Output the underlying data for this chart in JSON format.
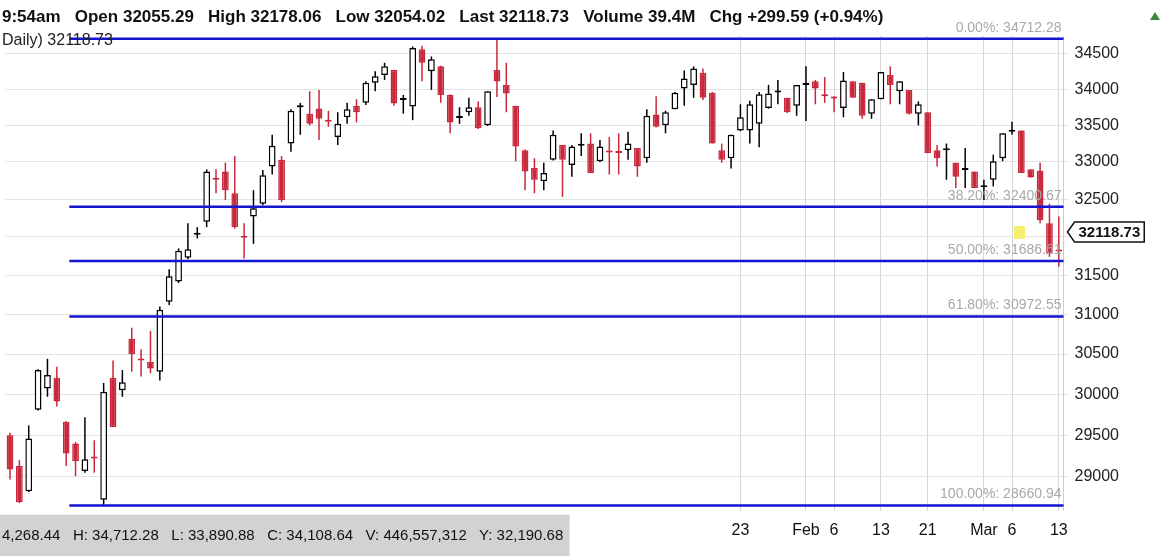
{
  "chart_data": {
    "type": "candlestick",
    "categories": [
      null,
      null,
      null,
      null,
      null,
      null,
      null,
      null,
      null,
      null,
      null,
      null,
      null,
      null,
      null,
      null,
      null,
      null,
      null,
      null,
      null,
      null,
      null,
      null,
      null,
      null,
      null,
      null,
      null,
      null,
      null,
      null,
      null,
      null,
      null,
      null,
      null,
      null,
      null,
      null,
      null,
      null,
      null,
      null,
      null,
      null,
      null,
      null,
      null,
      null,
      null,
      null,
      null,
      null,
      null,
      null,
      null,
      null,
      null,
      null,
      null,
      null,
      null,
      null,
      null,
      null,
      null,
      null,
      null,
      null,
      null,
      null,
      null,
      null,
      null,
      null,
      null,
      null,
      "23",
      null,
      null,
      null,
      null,
      null,
      null,
      "Feb",
      null,
      null,
      "6",
      null,
      null,
      null,
      null,
      "13",
      null,
      null,
      null,
      null,
      "21",
      null,
      null,
      null,
      null,
      null,
      "Mar",
      null,
      null,
      "6",
      null,
      null,
      null,
      null,
      "13"
    ],
    "ohlc": [
      [
        29500,
        29530,
        28970,
        29090
      ],
      [
        29130,
        29200,
        28690,
        28700
      ],
      [
        28830,
        29620,
        28820,
        29460
      ],
      [
        29810,
        30310,
        29800,
        30300
      ],
      [
        30070,
        30440,
        29970,
        30240
      ],
      [
        30200,
        30340,
        29850,
        29910
      ],
      [
        29660,
        29670,
        29130,
        29280
      ],
      [
        29400,
        29420,
        29010,
        29190
      ],
      [
        29070,
        29720,
        29050,
        29210
      ],
      [
        29230,
        29440,
        29050,
        29220
      ],
      [
        28730,
        30140,
        28660.94,
        30030
      ],
      [
        30200,
        30420,
        29600,
        29600
      ],
      [
        30050,
        30300,
        29970,
        30150
      ],
      [
        30690,
        30830,
        30280,
        30500
      ],
      [
        30430,
        30560,
        30220,
        30420
      ],
      [
        30400,
        30790,
        30260,
        30320
      ],
      [
        30280,
        31100,
        30170,
        31060
      ],
      [
        31160,
        31580,
        31120,
        31490
      ],
      [
        31420,
        31850,
        31400,
        31820
      ],
      [
        31730,
        32180,
        31710,
        31840
      ],
      [
        32030,
        32130,
        31980,
        32040
      ],
      [
        32200,
        32900,
        32130,
        32870
      ],
      [
        32770,
        32900,
        32580,
        32760
      ],
      [
        32870,
        32990,
        32490,
        32620
      ],
      [
        32580,
        33080,
        32110,
        32130
      ],
      [
        32000,
        32180,
        31720,
        31990
      ],
      [
        32270,
        32620,
        31910,
        32380
      ],
      [
        32440,
        32890,
        32420,
        32820
      ],
      [
        32940,
        33370,
        32830,
        33220
      ],
      [
        33030,
        33080,
        32460,
        32490
      ],
      [
        33250,
        33720,
        33140,
        33700
      ],
      [
        33750,
        33810,
        33370,
        33770
      ],
      [
        33660,
        33970,
        33500,
        33520
      ],
      [
        33730,
        33990,
        33300,
        33590
      ],
      [
        33560,
        33700,
        33480,
        33550
      ],
      [
        33340,
        33680,
        33230,
        33520
      ],
      [
        33610,
        33810,
        33520,
        33720
      ],
      [
        33770,
        33860,
        33540,
        33680
      ],
      [
        33810,
        34110,
        33780,
        34090
      ],
      [
        34090,
        34250,
        33970,
        34180
      ],
      [
        34200,
        34370,
        34130,
        34320
      ],
      [
        34270,
        34270,
        33770,
        33800
      ],
      [
        33850,
        33920,
        33660,
        33860
      ],
      [
        33760,
        34600,
        33570,
        34580
      ],
      [
        34560,
        34610,
        34110,
        34370
      ],
      [
        34250,
        34460,
        33990,
        34420
      ],
      [
        34320,
        34330,
        33810,
        33920
      ],
      [
        33920,
        33930,
        33390,
        33540
      ],
      [
        33600,
        33750,
        33520,
        33610
      ],
      [
        33680,
        33880,
        33630,
        33750
      ],
      [
        33750,
        33830,
        33450,
        33460
      ],
      [
        33500,
        33970,
        33490,
        33970
      ],
      [
        34268.44,
        34712.28,
        33890.88,
        34108.64
      ],
      [
        34060,
        34370,
        33680,
        33940
      ],
      [
        33770,
        33770,
        33010,
        33210
      ],
      [
        33160,
        33170,
        32620,
        32870
      ],
      [
        32920,
        33050,
        32580,
        32760
      ],
      [
        32740,
        32990,
        32620,
        32850
      ],
      [
        33030,
        33430,
        33020,
        33370
      ],
      [
        33230,
        33230,
        32530,
        33030
      ],
      [
        32960,
        33230,
        32800,
        33210
      ],
      [
        33220,
        33390,
        33080,
        33230
      ],
      [
        33250,
        33390,
        32850,
        32850
      ],
      [
        33010,
        33300,
        33000,
        33210
      ],
      [
        33140,
        33340,
        32830,
        33130
      ],
      [
        33130,
        33390,
        32830,
        33120
      ],
      [
        33160,
        33410,
        33030,
        33250
      ],
      [
        33190,
        33190,
        32800,
        32940
      ],
      [
        33050,
        33720,
        32990,
        33630
      ],
      [
        33650,
        33900,
        33470,
        33480
      ],
      [
        33500,
        33700,
        33390,
        33680
      ],
      [
        33720,
        33960,
        33720,
        33950
      ],
      [
        34010,
        34260,
        33770,
        34150
      ],
      [
        34060,
        34320,
        33880,
        34290
      ],
      [
        34230,
        34290,
        33850,
        33880
      ],
      [
        33950,
        33960,
        33250,
        33250
      ],
      [
        33160,
        33250,
        32990,
        33030
      ],
      [
        33050,
        33370,
        32910,
        33370
      ],
      [
        33430,
        33790,
        33420,
        33610
      ],
      [
        33430,
        33840,
        33250,
        33790
      ],
      [
        33520,
        33960,
        33200,
        33930
      ],
      [
        33740,
        34060,
        33730,
        33940
      ],
      [
        33955,
        34130,
        33790,
        33970
      ],
      [
        33880,
        33880,
        33670,
        33680
      ],
      [
        33770,
        34060,
        33630,
        34060
      ],
      [
        34060,
        34320,
        33560,
        34070
      ],
      [
        34110,
        34130,
        33790,
        34010
      ],
      [
        33910,
        34170,
        33810,
        33900
      ],
      [
        33880,
        33900,
        33680,
        33870
      ],
      [
        33740,
        34240,
        33610,
        34120
      ],
      [
        34110,
        34110,
        33880,
        33880
      ],
      [
        34090,
        34090,
        33590,
        33630
      ],
      [
        33660,
        33860,
        33590,
        33860
      ],
      [
        33860,
        34240,
        33860,
        34240
      ],
      [
        34200,
        34320,
        33790,
        34060
      ],
      [
        33970,
        34110,
        33790,
        34110
      ],
      [
        33990,
        33990,
        33650,
        33660
      ],
      [
        33660,
        33830,
        33500,
        33790
      ],
      [
        33680,
        33680,
        33120,
        33120
      ],
      [
        33160,
        33230,
        32940,
        33050
      ],
      [
        33160,
        33250,
        32760,
        33170
      ],
      [
        32990,
        32990,
        32650,
        32800
      ],
      [
        32890,
        33190,
        32650,
        32900
      ],
      [
        32870,
        32870,
        32650,
        32650
      ],
      [
        32660,
        32760,
        32490,
        32670
      ],
      [
        32760,
        33100,
        32670,
        33010
      ],
      [
        33050,
        33390,
        33010,
        33390
      ],
      [
        33410,
        33550,
        33370,
        33420
      ],
      [
        33430,
        33430,
        32850,
        32850
      ],
      [
        32900,
        32900,
        32790,
        32790
      ],
      [
        32880,
        32990,
        32180,
        32220
      ],
      [
        32180,
        32440,
        31740,
        31780
      ],
      [
        31820,
        32270,
        31610,
        31810
      ]
    ],
    "colors": [
      "#c8283c",
      "#c8283c",
      "#000000",
      "#000000",
      "#000000",
      "#c8283c",
      "#c8283c",
      "#c8283c",
      "#000000",
      "#c8283c",
      "#000000",
      "#c8283c",
      "#000000",
      "#c8283c",
      "#c8283c",
      "#c8283c",
      "#000000",
      "#000000",
      "#000000",
      "#000000",
      "#000000",
      "#000000",
      "#c8283c",
      "#c8283c",
      "#c8283c",
      "#c8283c",
      "#000000",
      "#000000",
      "#000000",
      "#c8283c",
      "#000000",
      "#000000",
      "#c8283c",
      "#c8283c",
      "#c8283c",
      "#000000",
      "#000000",
      "#c8283c",
      "#000000",
      "#000000",
      "#000000",
      "#c8283c",
      "#000000",
      "#000000",
      "#c8283c",
      "#000000",
      "#c8283c",
      "#c8283c",
      "#000000",
      "#000000",
      "#c8283c",
      "#000000",
      "#c8283c",
      "#c8283c",
      "#c8283c",
      "#c8283c",
      "#c8283c",
      "#000000",
      "#000000",
      "#c8283c",
      "#000000",
      "#000000",
      "#c8283c",
      "#000000",
      "#c8283c",
      "#c8283c",
      "#000000",
      "#c8283c",
      "#000000",
      "#c8283c",
      "#000000",
      "#000000",
      "#000000",
      "#000000",
      "#c8283c",
      "#c8283c",
      "#c8283c",
      "#000000",
      "#000000",
      "#000000",
      "#000000",
      "#000000",
      "#000000",
      "#c8283c",
      "#000000",
      "#000000",
      "#c8283c",
      "#c8283c",
      "#c8283c",
      "#000000",
      "#c8283c",
      "#c8283c",
      "#000000",
      "#000000",
      "#c8283c",
      "#000000",
      "#c8283c",
      "#000000",
      "#c8283c",
      "#c8283c",
      "#000000",
      "#c8283c",
      "#000000",
      "#c8283c",
      "#000000",
      "#000000",
      "#000000",
      "#000000",
      "#c8283c",
      "#c8283c",
      "#c8283c",
      "#c8283c",
      "#c8283c"
    ],
    "log": true,
    "ylim": [
      28600,
      34750
    ],
    "yticks": [
      29000,
      29500,
      30000,
      30500,
      31000,
      31500,
      {
        "value": 32000,
        "label": null
      },
      32500,
      33000,
      33500,
      34000,
      34500
    ],
    "grid": true,
    "ref_lines": [
      {
        "axis": "y",
        "value": 34712.28,
        "label": "0.00%: 34712.28",
        "color": "#1414d2"
      },
      {
        "axis": "y",
        "value": 32400.67,
        "label": "38.20%: 32400.67",
        "color": "#1414d2"
      },
      {
        "axis": "y",
        "value": 31686.61,
        "label": "50.00%: 31686.61",
        "color": "#1414d2"
      },
      {
        "axis": "y",
        "value": 30972.55,
        "label": "61.80%: 30972.55",
        "color": "#1414d2"
      },
      {
        "axis": "y",
        "value": 28660.94,
        "label": "100.00%: 28660.94",
        "color": "#1414d2"
      }
    ],
    "annotations": [
      "9:54am   Open 32055.29   High 32178.06   Low 32054.02   Last 32118.73   Volume 39.4M   Chg +299.59 (+0.94%)",
      "Daily) 32118.73",
      "4,268.44   H: 34,712.28   L: 33,890.88   C: 34,108.64   V: 446,557,312   Y: 32,190.68",
      "32118.73"
    ]
  }
}
